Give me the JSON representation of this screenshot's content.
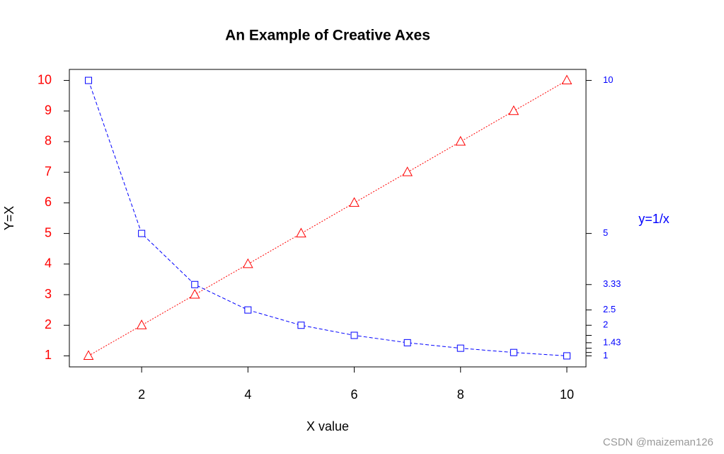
{
  "chart_data": {
    "type": "line",
    "title": "An Example of Creative Axes",
    "x_label": "X value",
    "y_label": "Y=X",
    "y2_label": "y=1/x",
    "x": [
      1,
      2,
      3,
      4,
      5,
      6,
      7,
      8,
      9,
      10
    ],
    "series": [
      {
        "color": "#ff0000",
        "marker": "triangle",
        "dash": "2,2",
        "values": [
          1,
          2,
          3,
          4,
          5,
          6,
          7,
          8,
          9,
          10
        ]
      },
      {
        "color": "#0000ff",
        "marker": "square",
        "dash": "5,3",
        "axis": "y2",
        "values": [
          10,
          5,
          3.33,
          2.5,
          2,
          1.67,
          1.43,
          1.25,
          1.11,
          1
        ]
      }
    ],
    "xlim": [
      0.64,
      10.36
    ],
    "xticks": [
      2,
      4,
      6,
      8,
      10
    ],
    "ylim": [
      0.64,
      10.36
    ],
    "yticks": [
      1,
      2,
      3,
      4,
      5,
      6,
      7,
      8,
      9,
      10
    ],
    "y_tick_color": "#ff0000",
    "y2lim": [
      0.64,
      10.36
    ],
    "y2ticks": [
      10,
      5,
      3.33,
      2.5,
      2,
      1.43,
      1
    ],
    "y2_minor_ticks": [
      1.67,
      1.25,
      1.11
    ],
    "y2_tick_color": "#0000ff",
    "watermark": "CSDN @maizeman126"
  }
}
